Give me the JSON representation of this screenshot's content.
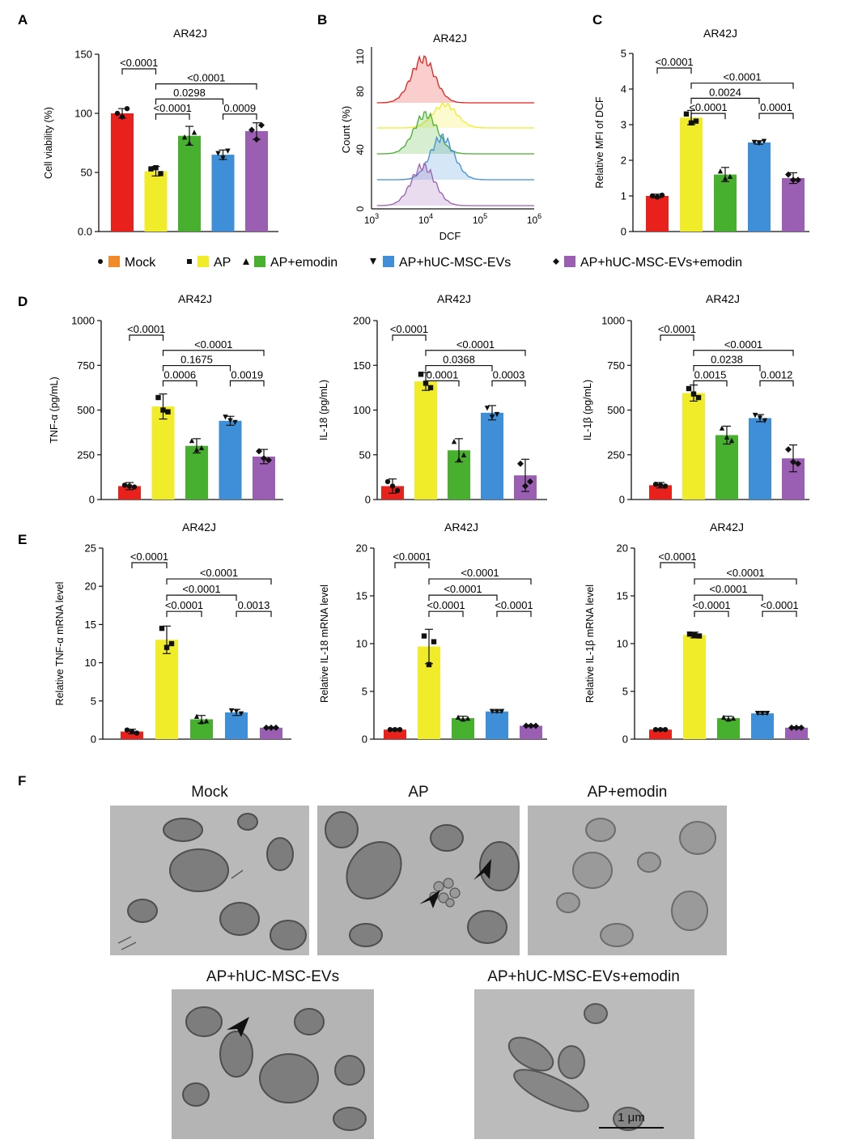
{
  "colors": {
    "Mock": "#e8211d",
    "AP": "#f0ec2a",
    "AP+emodin": "#47b02f",
    "AP+hUC-MSC-EVs": "#3f8fd8",
    "AP+hUC-MSC-EVs+emodin": "#9a5fb2",
    "mock_legend_swatch": "#f08a2a"
  },
  "legend": {
    "items": [
      {
        "label": "Mock",
        "marker": "circle"
      },
      {
        "label": "AP",
        "marker": "square"
      },
      {
        "label": "AP+emodin",
        "marker": "triangle-up"
      },
      {
        "label": "AP+hUC-MSC-EVs",
        "marker": "triangle-down"
      },
      {
        "label": "AP+hUC-MSC-EVs+emodin",
        "marker": "diamond"
      }
    ]
  },
  "chart_data": [
    {
      "id": "A",
      "panel_label": "A",
      "type": "bar",
      "title": "AR42J",
      "ylabel": "Cell viability (%)",
      "ylim": [
        0,
        150
      ],
      "yticks": [
        "0.0",
        "50",
        "100",
        "150"
      ],
      "values": [
        100,
        51,
        81,
        65,
        85
      ],
      "errors": [
        4,
        4,
        8,
        4,
        7
      ],
      "points": [
        [
          100,
          104,
          97
        ],
        [
          53,
          49,
          54
        ],
        [
          80,
          84,
          75
        ],
        [
          66,
          68,
          62
        ],
        [
          86,
          90,
          78
        ]
      ],
      "brackets": [
        {
          "from": 0,
          "to": 1,
          "label": "<0.0001",
          "level": 0
        },
        {
          "from": 1,
          "to": 4,
          "label": "<0.0001",
          "level": 1
        },
        {
          "from": 1,
          "to": 3,
          "label": "0.0298",
          "level": 2
        },
        {
          "from": 1,
          "to": 2,
          "label": "<0.0001",
          "level": 3
        },
        {
          "from": 3,
          "to": 4,
          "label": "0.0009",
          "level": 3
        }
      ]
    },
    {
      "id": "C",
      "panel_label": "C",
      "type": "bar",
      "title": "AR42J",
      "ylabel": "Relative MFI of DCF",
      "ylim": [
        0,
        5
      ],
      "yticks": [
        "0",
        "1",
        "2",
        "3",
        "4",
        "5"
      ],
      "values": [
        1.0,
        3.2,
        1.6,
        2.5,
        1.5
      ],
      "errors": [
        0.05,
        0.2,
        0.2,
        0.05,
        0.15
      ],
      "points": [
        [
          1.0,
          1.02,
          0.97
        ],
        [
          3.3,
          3.1,
          3.05
        ],
        [
          1.7,
          1.55,
          1.5
        ],
        [
          2.5,
          2.53,
          2.48
        ],
        [
          1.6,
          1.45,
          1.45
        ]
      ],
      "brackets": [
        {
          "from": 0,
          "to": 1,
          "label": "<0.0001",
          "level": 0
        },
        {
          "from": 1,
          "to": 4,
          "label": "<0.0001",
          "level": 1
        },
        {
          "from": 1,
          "to": 3,
          "label": "0.0024",
          "level": 2
        },
        {
          "from": 1,
          "to": 2,
          "label": "<0.0001",
          "level": 3
        },
        {
          "from": 3,
          "to": 4,
          "label": "0.0001",
          "level": 3
        }
      ]
    },
    {
      "id": "D1",
      "panel_label": "D",
      "type": "bar",
      "title": "AR42J",
      "ylabel": "TNF-α (pg/mL)",
      "ylim": [
        0,
        1000
      ],
      "yticks": [
        "0",
        "250",
        "500",
        "750",
        "1000"
      ],
      "values": [
        75,
        520,
        300,
        440,
        240
      ],
      "errors": [
        20,
        70,
        40,
        25,
        40
      ],
      "points": [
        [
          80,
          70,
          75
        ],
        [
          570,
          490,
          500
        ],
        [
          330,
          290,
          280
        ],
        [
          460,
          430,
          440
        ],
        [
          270,
          220,
          230
        ]
      ],
      "brackets": [
        {
          "from": 0,
          "to": 1,
          "label": "<0.0001",
          "level": 0
        },
        {
          "from": 1,
          "to": 4,
          "label": "<0.0001",
          "level": 1
        },
        {
          "from": 1,
          "to": 3,
          "label": "0.1675",
          "level": 2
        },
        {
          "from": 1,
          "to": 2,
          "label": "0.0006",
          "level": 3
        },
        {
          "from": 3,
          "to": 4,
          "label": "0.0019",
          "level": 3
        }
      ]
    },
    {
      "id": "D2",
      "panel_label": "",
      "type": "bar",
      "title": "AR42J",
      "ylabel": "IL-18 (pg/mL)",
      "ylim": [
        0,
        200
      ],
      "yticks": [
        "0",
        "50",
        "100",
        "150",
        "200"
      ],
      "values": [
        15,
        132,
        55,
        97,
        27
      ],
      "errors": [
        8,
        10,
        13,
        8,
        18
      ],
      "points": [
        [
          20,
          10,
          15
        ],
        [
          140,
          125,
          130
        ],
        [
          65,
          50,
          45
        ],
        [
          102,
          95,
          92
        ],
        [
          40,
          20,
          15
        ]
      ],
      "brackets": [
        {
          "from": 0,
          "to": 1,
          "label": "<0.0001",
          "level": 0
        },
        {
          "from": 1,
          "to": 4,
          "label": "<0.0001",
          "level": 1
        },
        {
          "from": 1,
          "to": 3,
          "label": "0.0368",
          "level": 2
        },
        {
          "from": 1,
          "to": 2,
          "label": "0.0001",
          "level": 3
        },
        {
          "from": 3,
          "to": 4,
          "label": "0.0003",
          "level": 3
        }
      ]
    },
    {
      "id": "D3",
      "panel_label": "",
      "type": "bar",
      "title": "AR42J",
      "ylabel": "IL-1β (pg/mL)",
      "ylim": [
        0,
        1000
      ],
      "yticks": [
        "0",
        "250",
        "500",
        "750",
        "1000"
      ],
      "values": [
        80,
        595,
        360,
        455,
        230
      ],
      "errors": [
        15,
        45,
        50,
        20,
        75
      ],
      "points": [
        [
          85,
          75,
          80
        ],
        [
          620,
          570,
          590
        ],
        [
          400,
          330,
          350
        ],
        [
          470,
          440,
          455
        ],
        [
          280,
          200,
          210
        ]
      ],
      "brackets": [
        {
          "from": 0,
          "to": 1,
          "label": "<0.0001",
          "level": 0
        },
        {
          "from": 1,
          "to": 4,
          "label": "<0.0001",
          "level": 1
        },
        {
          "from": 1,
          "to": 3,
          "label": "0.0238",
          "level": 2
        },
        {
          "from": 1,
          "to": 2,
          "label": "0.0015",
          "level": 3
        },
        {
          "from": 3,
          "to": 4,
          "label": "0.0012",
          "level": 3
        }
      ]
    },
    {
      "id": "E1",
      "panel_label": "E",
      "type": "bar",
      "title": "AR42J",
      "ylabel": "Relative TNF-α mRNA level",
      "ylim": [
        0,
        25
      ],
      "yticks": [
        "0",
        "5",
        "10",
        "15",
        "20",
        "25"
      ],
      "values": [
        1.0,
        13.0,
        2.6,
        3.5,
        1.5
      ],
      "errors": [
        0.3,
        1.8,
        0.5,
        0.4,
        0.1
      ],
      "points": [
        [
          1.2,
          0.8,
          1.0
        ],
        [
          14.5,
          12.5,
          12.0
        ],
        [
          3.0,
          2.4,
          2.3
        ],
        [
          3.7,
          3.3,
          3.6
        ],
        [
          1.5,
          1.5,
          1.5
        ]
      ],
      "brackets": [
        {
          "from": 0,
          "to": 1,
          "label": "<0.0001",
          "level": 0
        },
        {
          "from": 1,
          "to": 4,
          "label": "<0.0001",
          "level": 1
        },
        {
          "from": 1,
          "to": 3,
          "label": "<0.0001",
          "level": 2
        },
        {
          "from": 1,
          "to": 2,
          "label": "<0.0001",
          "level": 3
        },
        {
          "from": 3,
          "to": 4,
          "label": "0.0013",
          "level": 3
        }
      ]
    },
    {
      "id": "E2",
      "panel_label": "",
      "type": "bar",
      "title": "AR42J",
      "ylabel": "Relative IL-18 mRNA level",
      "ylim": [
        0,
        20
      ],
      "yticks": [
        "0",
        "5",
        "10",
        "15",
        "20"
      ],
      "values": [
        1.0,
        9.7,
        2.2,
        2.9,
        1.4
      ],
      "errors": [
        0.1,
        1.8,
        0.2,
        0.1,
        0.1
      ],
      "points": [
        [
          1.0,
          1.0,
          1.0
        ],
        [
          10.8,
          10.2,
          7.8
        ],
        [
          2.3,
          2.2,
          2.1
        ],
        [
          2.9,
          2.9,
          2.9
        ],
        [
          1.4,
          1.4,
          1.4
        ]
      ],
      "brackets": [
        {
          "from": 0,
          "to": 1,
          "label": "<0.0001",
          "level": 0
        },
        {
          "from": 1,
          "to": 4,
          "label": "<0.0001",
          "level": 1
        },
        {
          "from": 1,
          "to": 3,
          "label": "<0.0001",
          "level": 2
        },
        {
          "from": 1,
          "to": 2,
          "label": "<0.0001",
          "level": 3
        },
        {
          "from": 3,
          "to": 4,
          "label": "<0.0001",
          "level": 3
        }
      ]
    },
    {
      "id": "E3",
      "panel_label": "",
      "type": "bar",
      "title": "AR42J",
      "ylabel": "Relative IL-1β mRNA level",
      "ylim": [
        0,
        20
      ],
      "yticks": [
        "0",
        "5",
        "10",
        "15",
        "20"
      ],
      "values": [
        1.0,
        10.9,
        2.2,
        2.7,
        1.2
      ],
      "errors": [
        0.1,
        0.3,
        0.2,
        0.1,
        0.1
      ],
      "points": [
        [
          1.0,
          1.0,
          1.0
        ],
        [
          11.0,
          10.8,
          10.9
        ],
        [
          2.3,
          2.2,
          2.1
        ],
        [
          2.7,
          2.7,
          2.7
        ],
        [
          1.2,
          1.2,
          1.2
        ]
      ],
      "brackets": [
        {
          "from": 0,
          "to": 1,
          "label": "<0.0001",
          "level": 0
        },
        {
          "from": 1,
          "to": 4,
          "label": "<0.0001",
          "level": 1
        },
        {
          "from": 1,
          "to": 3,
          "label": "<0.0001",
          "level": 2
        },
        {
          "from": 1,
          "to": 2,
          "label": "<0.0001",
          "level": 3
        },
        {
          "from": 3,
          "to": 4,
          "label": "<0.0001",
          "level": 3
        }
      ]
    }
  ],
  "flow_B": {
    "panel_label": "B",
    "title": "AR42J",
    "xlabel": "DCF",
    "ylabel": "Count (%)",
    "yticks": [
      "0",
      "40",
      "80",
      "110"
    ],
    "xticks": [
      {
        "base": "10",
        "exp": "3"
      },
      {
        "base": "10",
        "exp": "4"
      },
      {
        "base": "10",
        "exp": "5"
      },
      {
        "base": "10",
        "exp": "6"
      }
    ],
    "traces": [
      {
        "group": "Mock",
        "peak_log10": 3.95
      },
      {
        "group": "AP",
        "peak_log10": 4.35
      },
      {
        "group": "AP+emodin",
        "peak_log10": 4.0
      },
      {
        "group": "AP+hUC-MSC-EVs",
        "peak_log10": 4.3
      },
      {
        "group": "AP+hUC-MSC-EVs+emodin",
        "peak_log10": 3.95
      }
    ]
  },
  "panel_F": {
    "label": "F",
    "images": [
      "Mock",
      "AP",
      "AP+emodin",
      "AP+hUC-MSC-EVs",
      "AP+hUC-MSC-EVs+emodin"
    ],
    "scale_bar": "1 μm"
  }
}
